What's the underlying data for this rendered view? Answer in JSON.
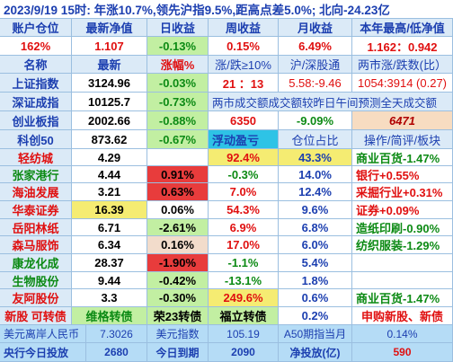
{
  "header": {
    "title": "2023/9/19  15时: 年涨10.7%,领先沪指9.5%,距高点差5.0%; 北向-24.23亿"
  },
  "account_row": {
    "labels": [
      "账户仓位",
      "最新净值",
      "日收益",
      "周收益",
      "月收益",
      "本年最高/低净值"
    ],
    "values": [
      "162%",
      "1.107",
      "-0.13%",
      "0.15%",
      "6.49%",
      "1.162：0.942"
    ]
  },
  "index_header": [
    "名称",
    "最新",
    "涨幅%",
    "涨/跌≥10%",
    "沪/深股通",
    "两市涨/跌数(比）"
  ],
  "indices": [
    {
      "name": "上证指数",
      "price": "3124.96",
      "change": "-0.03%",
      "c4": "21 ：13",
      "c5": "5.58:-9.46",
      "c6": "1054:3914 (0.27)"
    },
    {
      "name": "深证成指",
      "price": "10125.7",
      "change": "-0.73%",
      "note": "两市成交额成交额较昨日午间预测全天成交额"
    },
    {
      "name": "创业板指",
      "price": "2002.66",
      "change": "-0.88%",
      "c4": "6350",
      "c5": "-9.09%",
      "c6": "6471"
    },
    {
      "name": "科创50",
      "price": "873.62",
      "change": "-0.67%",
      "c4": "浮动盈亏",
      "c5": "仓位占比",
      "c6": "操作/简评/板块"
    }
  ],
  "holdings": [
    {
      "name": "轻纺城",
      "price": "4.29",
      "change": "",
      "pnl": "92.4%",
      "share": "43.3%",
      "note": "商业百货-1.47%"
    },
    {
      "name": "张家港行",
      "price": "4.44",
      "change": "0.91%",
      "pnl": "-0.3%",
      "share": "14.0%",
      "note": "银行+0.55%"
    },
    {
      "name": "海油发展",
      "price": "3.21",
      "change": "0.63%",
      "pnl": "7.0%",
      "share": "12.4%",
      "note": "采掘行业+0.31%"
    },
    {
      "name": "华泰证券",
      "price": "16.39",
      "change": "0.06%",
      "pnl": "54.3%",
      "share": "9.6%",
      "note": "证券+0.09%"
    },
    {
      "name": "岳阳林纸",
      "price": "6.71",
      "change": "-2.61%",
      "pnl": "6.9%",
      "share": "6.8%",
      "note": "造纸印刷-0.90%"
    },
    {
      "name": "森马服饰",
      "price": "6.34",
      "change": "0.16%",
      "pnl": "17.0%",
      "share": "6.0%",
      "note": "纺织服装-1.29%"
    },
    {
      "name": "康龙化成",
      "price": "28.37",
      "change": "-1.90%",
      "pnl": "-1.1%",
      "share": "5.4%",
      "note": ""
    },
    {
      "name": "生物股份",
      "price": "9.44",
      "change": "-0.42%",
      "pnl": "-13.1%",
      "share": "1.8%",
      "note": ""
    },
    {
      "name": "友阿股份",
      "price": "3.3",
      "change": "-0.30%",
      "pnl": "249.6%",
      "share": "0.6%",
      "note": "商业百货-1.47%"
    }
  ],
  "bond_row": {
    "c1": "新股 可转债",
    "c2": "维格转债",
    "c3": "荣23转债",
    "c4": "福立转债",
    "c5": "0.2%",
    "c6": "申购新股、新债"
  },
  "footer1": {
    "l1": "美元离岸人民币",
    "v1": "7.3026",
    "l2": "美元指数",
    "v2": "105.19",
    "l3": "A50期指当月",
    "v3": "0.14%"
  },
  "footer2": {
    "l1": "央行今日投放",
    "v1": "2680",
    "l2": "今日到期",
    "v2": "2090",
    "l3": "净投放(亿)",
    "v3": "590"
  }
}
